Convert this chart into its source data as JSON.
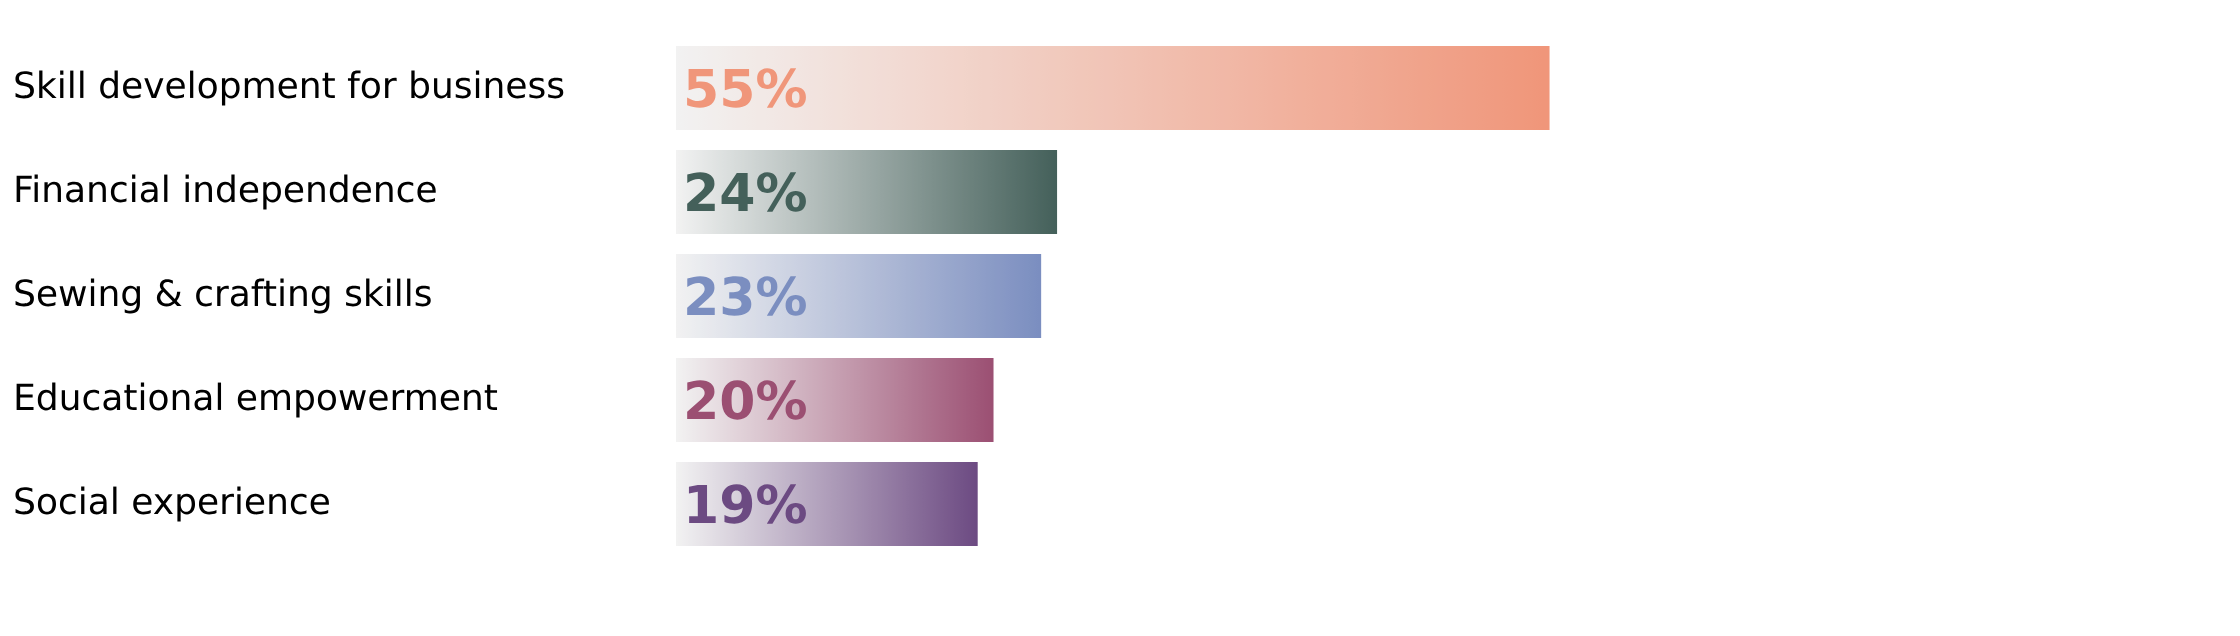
{
  "chart_data": {
    "type": "bar",
    "orientation": "horizontal",
    "data_labels": true,
    "categories": [
      "Skill development for business",
      "Financial independence",
      "Sewing & crafting skills",
      "Educational empowerment",
      "Social experience"
    ],
    "values": [
      55,
      24,
      23,
      20,
      19
    ],
    "value_labels": [
      "55%",
      "24%",
      "23%",
      "20%",
      "19%"
    ],
    "colors": [
      "#f0967a",
      "#44605a",
      "#7b8ec0",
      "#9b4f72",
      "#6c4a82"
    ]
  }
}
